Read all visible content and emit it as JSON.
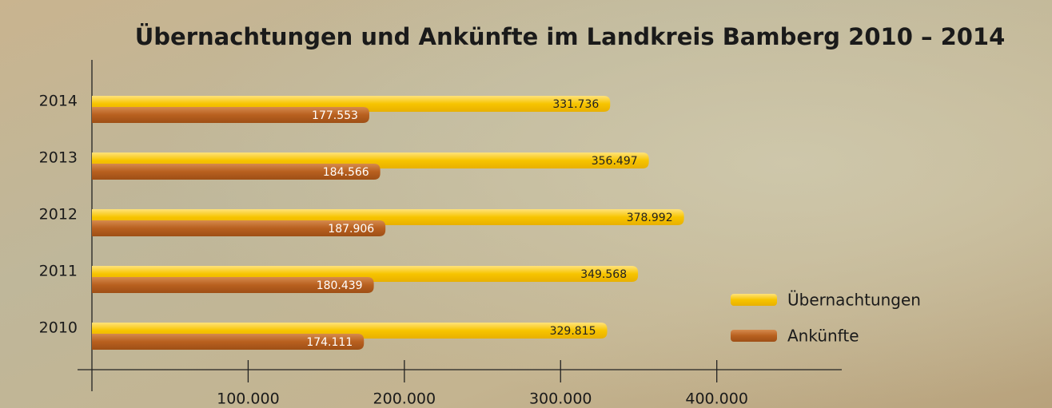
{
  "chart_data": {
    "type": "barh",
    "title": "Übernachtungen und Ankünfte im Landkreis Bamberg 2010 – 2014",
    "categories": [
      "2014",
      "2013",
      "2012",
      "2011",
      "2010"
    ],
    "series": [
      {
        "name": "Übernachtungen",
        "color": "#f7c400",
        "values": [
          331736,
          356497,
          378992,
          349568,
          329815
        ],
        "value_labels": [
          "331.736",
          "356.497",
          "378.992",
          "349.568",
          "329.815"
        ]
      },
      {
        "name": "Ankünfte",
        "color": "#b8601f",
        "values": [
          177553,
          184566,
          187906,
          180439,
          174111
        ],
        "value_labels": [
          "177.553",
          "184.566",
          "187.906",
          "180.439",
          "174.111"
        ]
      }
    ],
    "xlim": [
      0,
      480000
    ],
    "xticks": [
      {
        "value": 100000,
        "label": "100.000"
      },
      {
        "value": 200000,
        "label": "200.000"
      },
      {
        "value": 300000,
        "label": "300.000"
      },
      {
        "value": 400000,
        "label": "400.000"
      }
    ],
    "legend": "right"
  }
}
